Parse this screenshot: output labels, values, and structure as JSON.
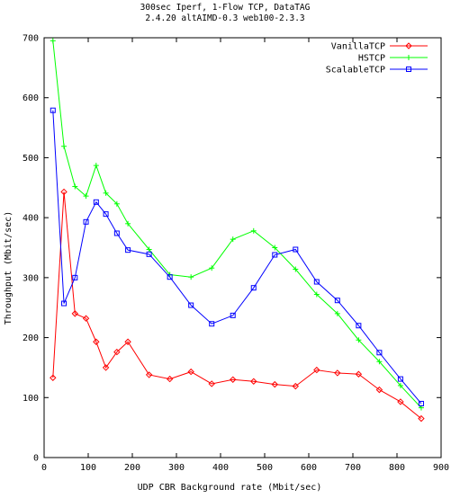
{
  "chart_data": {
    "type": "line",
    "title": "300sec Iperf, 1-Flow TCP, DataTAG",
    "subtitle": "2.4.20 altAIMD-0.3 web100-2.3.3",
    "xlabel": "UDP CBR Background rate (Mbit/sec)",
    "ylabel": "Throughput (Mbit/sec)",
    "xlim": [
      0,
      900
    ],
    "ylim": [
      0,
      700
    ],
    "x_ticks": [
      "0",
      "100",
      "200",
      "300",
      "400",
      "500",
      "600",
      "700",
      "800",
      "900"
    ],
    "y_ticks": [
      "0",
      "100",
      "200",
      "300",
      "400",
      "500",
      "600",
      "700"
    ],
    "grid": false,
    "legend_position": "top-right",
    "series": [
      {
        "name": "VanillaTCP",
        "color": "#ff0000",
        "marker": "diamond",
        "points": [
          [
            20,
            133
          ],
          [
            45,
            443
          ],
          [
            70,
            240
          ],
          [
            95,
            232
          ],
          [
            118,
            193
          ],
          [
            140,
            150
          ],
          [
            165,
            176
          ],
          [
            190,
            193
          ],
          [
            238,
            138
          ],
          [
            285,
            131
          ],
          [
            333,
            143
          ],
          [
            380,
            123
          ],
          [
            428,
            130
          ],
          [
            475,
            127
          ],
          [
            523,
            122
          ],
          [
            570,
            119
          ],
          [
            618,
            146
          ],
          [
            665,
            141
          ],
          [
            713,
            139
          ],
          [
            760,
            113
          ],
          [
            808,
            93
          ],
          [
            855,
            65
          ]
        ]
      },
      {
        "name": "HSTCP",
        "color": "#00ff00",
        "marker": "plus",
        "points": [
          [
            20,
            695
          ],
          [
            45,
            519
          ],
          [
            70,
            452
          ],
          [
            95,
            436
          ],
          [
            118,
            487
          ],
          [
            140,
            441
          ],
          [
            165,
            423
          ],
          [
            190,
            390
          ],
          [
            238,
            347
          ],
          [
            285,
            305
          ],
          [
            333,
            301
          ],
          [
            380,
            316
          ],
          [
            428,
            364
          ],
          [
            475,
            378
          ],
          [
            523,
            350
          ],
          [
            570,
            314
          ],
          [
            618,
            272
          ],
          [
            665,
            240
          ],
          [
            713,
            196
          ],
          [
            760,
            160
          ],
          [
            808,
            120
          ],
          [
            855,
            83
          ]
        ]
      },
      {
        "name": "ScalableTCP",
        "color": "#0000ff",
        "marker": "square",
        "points": [
          [
            20,
            579
          ],
          [
            45,
            257
          ],
          [
            70,
            300
          ],
          [
            95,
            393
          ],
          [
            118,
            426
          ],
          [
            140,
            406
          ],
          [
            165,
            374
          ],
          [
            190,
            346
          ],
          [
            238,
            339
          ],
          [
            285,
            301
          ],
          [
            333,
            254
          ],
          [
            380,
            223
          ],
          [
            428,
            237
          ],
          [
            475,
            283
          ],
          [
            523,
            338
          ],
          [
            570,
            347
          ],
          [
            618,
            293
          ],
          [
            665,
            262
          ],
          [
            713,
            220
          ],
          [
            760,
            175
          ],
          [
            808,
            131
          ],
          [
            855,
            90
          ]
        ]
      }
    ]
  }
}
